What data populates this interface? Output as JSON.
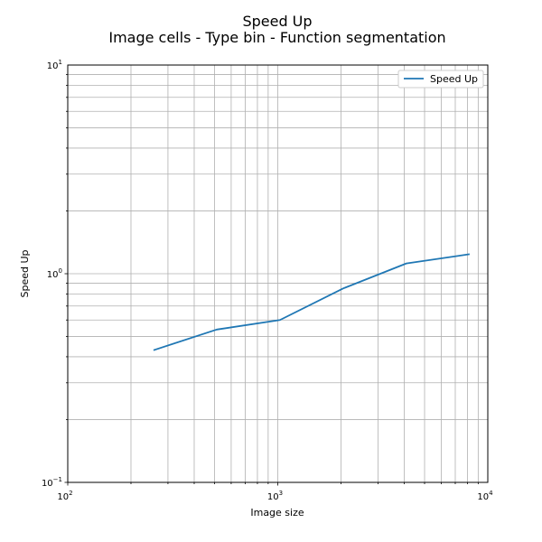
{
  "chart_data": {
    "type": "line",
    "title": "Speed Up",
    "subtitle": "Image cells - Type bin - Function segmentation",
    "xlabel": "Image size",
    "ylabel": "Speed Up",
    "xscale": "log",
    "yscale": "log",
    "xlim": [
      100,
      10000
    ],
    "ylim": [
      0.1,
      10
    ],
    "grid": true,
    "legend": "top-right",
    "x_ticks": [
      {
        "base": "10",
        "exp": "2"
      },
      {
        "base": "10",
        "exp": "3"
      },
      {
        "base": "10",
        "exp": "4"
      }
    ],
    "y_ticks": [
      {
        "base": "10",
        "exp": "−1"
      },
      {
        "base": "10",
        "exp": "0"
      },
      {
        "base": "10",
        "exp": "1"
      }
    ],
    "series": [
      {
        "name": "Speed Up",
        "color": "#1f77b4",
        "x": [
          256,
          512,
          1024,
          2048,
          4096,
          8192
        ],
        "y": [
          0.43,
          0.54,
          0.6,
          0.85,
          1.12,
          1.24
        ]
      }
    ]
  }
}
